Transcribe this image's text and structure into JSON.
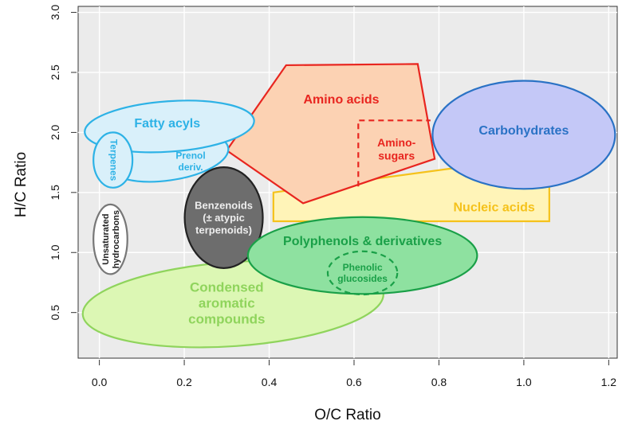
{
  "chart_data": {
    "type": "region-map",
    "xlabel": "O/C Ratio",
    "ylabel": "H/C Ratio",
    "xlim": [
      -0.05,
      1.22
    ],
    "ylim": [
      0.12,
      3.05
    ],
    "x_ticks": [
      0.0,
      0.2,
      0.4,
      0.6,
      0.8,
      1.0,
      1.2
    ],
    "x_tick_labels": [
      "0.0",
      "0.2",
      "0.4",
      "0.6",
      "0.8",
      "1.0",
      "1.2"
    ],
    "y_ticks": [
      0.5,
      1.0,
      1.5,
      2.0,
      2.5,
      3.0
    ],
    "y_tick_labels": [
      "0.5",
      "1.0",
      "1.5",
      "2.0",
      "2.5",
      "3.0"
    ],
    "grid": true,
    "background": "#ebebeb",
    "regions": [
      {
        "id": "condensed-aromatic",
        "label_lines": [
          "Condensed",
          "aromatic",
          "compounds"
        ],
        "shape": "ellipse",
        "cx": 0.315,
        "cy": 0.57,
        "rx": 0.355,
        "ry": 0.35,
        "angle_deg": -4,
        "fill": "#dcf7b4",
        "stroke": "#8fd45c",
        "dashed": false,
        "label_x": 0.3,
        "label_y": 0.58,
        "label_color": "#8fd45c"
      },
      {
        "id": "nucleic-acids",
        "label_lines": [
          "Nucleic acids"
        ],
        "shape": "polygon",
        "points": [
          [
            0.41,
            1.5
          ],
          [
            0.83,
            1.7
          ],
          [
            1.06,
            1.55
          ],
          [
            1.06,
            1.26
          ],
          [
            0.41,
            1.26
          ]
        ],
        "fill": "#fff4b8",
        "stroke": "#f5c21b",
        "dashed": false,
        "label_x": 0.93,
        "label_y": 1.38,
        "label_color": "#f5c21b"
      },
      {
        "id": "amino-acids",
        "label_lines": [
          "Amino acids"
        ],
        "shape": "polygon",
        "points": [
          [
            0.3,
            1.85
          ],
          [
            0.44,
            2.56
          ],
          [
            0.75,
            2.57
          ],
          [
            0.79,
            1.78
          ],
          [
            0.48,
            1.41
          ]
        ],
        "fill": "#fcd2b3",
        "stroke": "#e8251f",
        "dashed": false,
        "label_x": 0.57,
        "label_y": 2.28,
        "label_color": "#e8251f"
      },
      {
        "id": "amino-sugars",
        "label_lines": [
          "Amino-",
          "sugars"
        ],
        "shape": "polyline",
        "points": [
          [
            0.61,
            1.55
          ],
          [
            0.61,
            2.1
          ],
          [
            0.78,
            2.1
          ]
        ],
        "fill": "none",
        "stroke": "#e8251f",
        "dashed": true,
        "label_x": 0.7,
        "label_y": 1.86,
        "label_color": "#e8251f"
      },
      {
        "id": "carbohydrates",
        "label_lines": [
          "Carbohydrates"
        ],
        "shape": "ellipse",
        "cx": 1.0,
        "cy": 1.98,
        "rx": 0.215,
        "ry": 0.45,
        "angle_deg": 0,
        "fill": "#c4c8f7",
        "stroke": "#2a72c5",
        "dashed": false,
        "label_x": 1.0,
        "label_y": 2.02,
        "label_color": "#2a72c5"
      },
      {
        "id": "prenol-deriv",
        "label_lines": [
          "Prenol",
          "deriv."
        ],
        "shape": "ellipse",
        "cx": 0.16,
        "cy": 1.8,
        "rx": 0.145,
        "ry": 0.2,
        "angle_deg": -8,
        "fill": "#d9f0fa",
        "stroke": "#2db2e6",
        "dashed": false,
        "label_x": 0.215,
        "label_y": 1.76,
        "label_color": "#2db2e6"
      },
      {
        "id": "fatty-acyls",
        "label_lines": [
          "Fatty acyls"
        ],
        "shape": "ellipse",
        "cx": 0.165,
        "cy": 2.05,
        "rx": 0.2,
        "ry": 0.21,
        "angle_deg": -4,
        "fill": "#d9f0fa",
        "stroke": "#2db2e6",
        "dashed": false,
        "label_x": 0.16,
        "label_y": 2.08,
        "label_color": "#2db2e6"
      },
      {
        "id": "terpenes",
        "label_lines": [
          "Terpenes"
        ],
        "shape": "ellipse",
        "cx": 0.032,
        "cy": 1.77,
        "rx": 0.046,
        "ry": 0.23,
        "angle_deg": 0,
        "fill": "#d9f0fa",
        "stroke": "#2db2e6",
        "dashed": false,
        "label_x": 0.034,
        "label_y": 1.77,
        "label_color": "#2db2e6",
        "label_rotate": 90
      },
      {
        "id": "unsaturated-hydrocarbons",
        "label_lines": [
          "Unsaturated",
          "hydrocarbons"
        ],
        "shape": "ellipse",
        "cx": 0.026,
        "cy": 1.11,
        "rx": 0.04,
        "ry": 0.29,
        "angle_deg": 0,
        "fill": "#ffffff",
        "stroke": "#777777",
        "dashed": false,
        "label_x": 0.026,
        "label_y": 1.11,
        "label_color": "#222222",
        "label_rotate": -90
      },
      {
        "id": "benzenoids",
        "label_lines": [
          "Benzenoids",
          "(± atypic",
          "terpenoids)"
        ],
        "shape": "ellipse",
        "cx": 0.293,
        "cy": 1.29,
        "rx": 0.092,
        "ry": 0.42,
        "angle_deg": 0,
        "fill": "#6d6d6d",
        "stroke": "#222222",
        "dashed": false,
        "label_x": 0.293,
        "label_y": 1.29,
        "label_color": "#eeeeee"
      },
      {
        "id": "polyphenols",
        "label_lines": [
          "Polyphenols & derivatives"
        ],
        "shape": "ellipse",
        "cx": 0.62,
        "cy": 0.975,
        "rx": 0.27,
        "ry": 0.32,
        "angle_deg": 0,
        "fill": "#8ee1a0",
        "stroke": "#1aa048",
        "dashed": false,
        "label_x": 0.62,
        "label_y": 1.1,
        "label_color": "#1aa048"
      },
      {
        "id": "phenolic-glucosides",
        "label_lines": [
          "Phenolic",
          "glucosides"
        ],
        "shape": "ellipse",
        "cx": 0.62,
        "cy": 0.83,
        "rx": 0.082,
        "ry": 0.18,
        "angle_deg": 0,
        "fill": "none",
        "stroke": "#1aa048",
        "dashed": true,
        "label_x": 0.62,
        "label_y": 0.83,
        "label_color": "#1aa048"
      }
    ]
  }
}
